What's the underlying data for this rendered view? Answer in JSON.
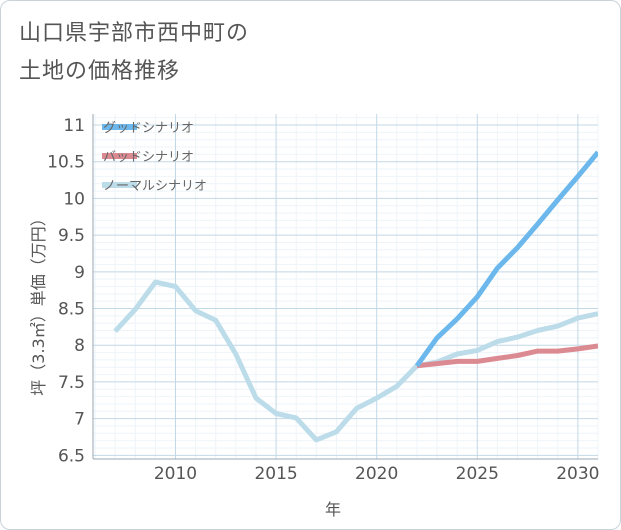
{
  "title": {
    "line1": "山口県宇部市西中町の",
    "line2": "土地の価格推移"
  },
  "chart_data": {
    "type": "line",
    "xlabel": "年",
    "ylabel": "坪（3.3㎡）単価（万円）",
    "xlim": [
      2005.9,
      2031
    ],
    "ylim": [
      6.45,
      11.15
    ],
    "x_ticks": [
      2010,
      2015,
      2020,
      2025,
      2030
    ],
    "y_ticks": [
      6.5,
      7,
      7.5,
      8,
      8.5,
      9,
      9.5,
      10,
      10.5,
      11
    ],
    "y_tick_labels": [
      "6.5",
      "7",
      "7.5",
      "8",
      "8.5",
      "9",
      "9.5",
      "10",
      "10.5",
      "11"
    ],
    "grid": true,
    "legend_position": "top-left",
    "series": [
      {
        "name": "グッドシナリオ",
        "color": "#6cb8ec",
        "x": [
          2022,
          2023,
          2024,
          2025,
          2026,
          2027,
          2028,
          2029,
          2030,
          2031
        ],
        "y": [
          7.72,
          8.1,
          8.36,
          8.66,
          9.05,
          9.33,
          9.65,
          9.98,
          10.3,
          10.63
        ]
      },
      {
        "name": "バッドシナリオ",
        "color": "#dc8a92",
        "x": [
          2022,
          2023,
          2024,
          2025,
          2026,
          2027,
          2028,
          2029,
          2030,
          2031
        ],
        "y": [
          7.72,
          7.75,
          7.78,
          7.78,
          7.82,
          7.86,
          7.92,
          7.92,
          7.95,
          7.99
        ]
      },
      {
        "name": "ノーマルシナリオ",
        "color": "#bcdcea",
        "x": [
          2007,
          2008,
          2009,
          2010,
          2011,
          2012,
          2013,
          2014,
          2015,
          2016,
          2017,
          2018,
          2019,
          2020,
          2021,
          2022,
          2023,
          2024,
          2025,
          2026,
          2027,
          2028,
          2029,
          2030,
          2031
        ],
        "y": [
          8.19,
          8.49,
          8.86,
          8.8,
          8.47,
          8.34,
          7.88,
          7.28,
          7.07,
          7.01,
          6.71,
          6.82,
          7.14,
          7.28,
          7.44,
          7.72,
          7.77,
          7.88,
          7.93,
          8.05,
          8.11,
          8.2,
          8.26,
          8.37,
          8.43
        ]
      }
    ]
  }
}
